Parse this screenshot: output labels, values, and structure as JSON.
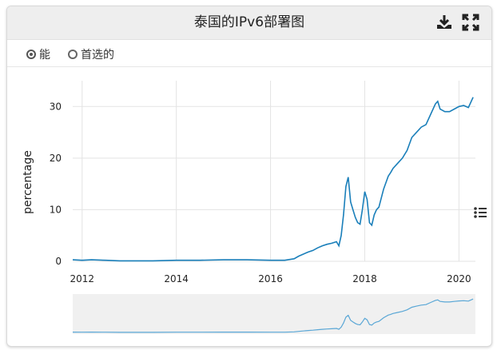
{
  "header": {
    "title": "泰国的IPv6部署图",
    "download_icon": "download-icon",
    "fullscreen_icon": "fullscreen-icon"
  },
  "radios": [
    {
      "label": "能",
      "selected": true
    },
    {
      "label": "首选的",
      "selected": false
    }
  ],
  "menu_icon": "list-menu-icon",
  "colors": {
    "line": "#1a7fba",
    "navigator_line": "#5aa7d6",
    "navigator_bg": "#f0f0f0"
  },
  "chart_data": {
    "type": "line",
    "title": "泰国的IPv6部署图",
    "xlabel": "",
    "ylabel": "percentage",
    "xlim": [
      2011.8,
      2020.35
    ],
    "ylim": [
      0,
      35
    ],
    "x_ticks": [
      "2012",
      "2014",
      "2016",
      "2018",
      "2020"
    ],
    "y_ticks": [
      "0",
      "10",
      "20",
      "30"
    ],
    "grid": true,
    "series": [
      {
        "name": "",
        "x": [
          2011.8,
          2012.0,
          2012.2,
          2012.5,
          2012.8,
          2013.0,
          2013.5,
          2014.0,
          2014.5,
          2015.0,
          2015.5,
          2016.0,
          2016.3,
          2016.5,
          2016.6,
          2016.8,
          2016.9,
          2017.0,
          2017.1,
          2017.2,
          2017.3,
          2017.4,
          2017.45,
          2017.5,
          2017.55,
          2017.6,
          2017.65,
          2017.7,
          2017.75,
          2017.8,
          2017.85,
          2017.9,
          2017.95,
          2018.0,
          2018.05,
          2018.1,
          2018.15,
          2018.2,
          2018.25,
          2018.3,
          2018.4,
          2018.5,
          2018.55,
          2018.6,
          2018.7,
          2018.8,
          2018.9,
          2019.0,
          2019.1,
          2019.2,
          2019.3,
          2019.4,
          2019.5,
          2019.55,
          2019.6,
          2019.7,
          2019.8,
          2019.9,
          2020.0,
          2020.1,
          2020.2,
          2020.3
        ],
        "values": [
          0.3,
          0.2,
          0.3,
          0.2,
          0.1,
          0.1,
          0.1,
          0.2,
          0.2,
          0.3,
          0.3,
          0.2,
          0.2,
          0.5,
          1.0,
          1.8,
          2.1,
          2.6,
          3.0,
          3.3,
          3.5,
          3.8,
          3.0,
          5.0,
          9.0,
          14.5,
          16.3,
          11.5,
          10.0,
          8.5,
          7.5,
          7.2,
          10.0,
          13.5,
          12.0,
          7.5,
          7.0,
          9.0,
          10.0,
          10.5,
          14.0,
          16.5,
          17.2,
          18.0,
          19.0,
          20.0,
          21.5,
          24.0,
          25.0,
          26.0,
          26.5,
          28.5,
          30.5,
          31.0,
          29.5,
          29.0,
          29.0,
          29.5,
          30.0,
          30.2,
          29.8,
          31.8
        ]
      }
    ]
  }
}
